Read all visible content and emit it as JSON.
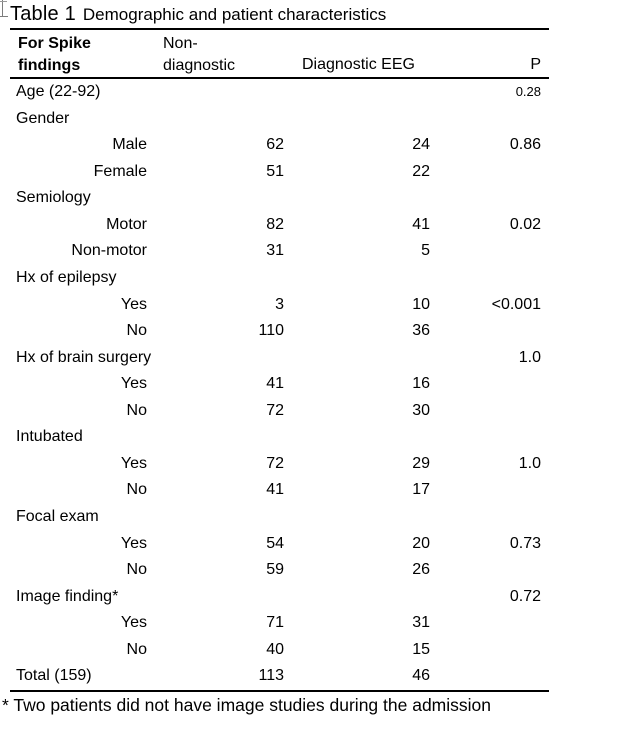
{
  "title": {
    "label": "Table 1",
    "caption": "Demographic and patient characteristics"
  },
  "header": {
    "col1_line1": "For Spike",
    "col1_line2": "findings",
    "col2_line1": "Non-",
    "col2_line2": "diagnostic",
    "col3": "Diagnostic EEG",
    "col4": "P"
  },
  "rows": [
    {
      "label": "Age (22-92)",
      "indent": false,
      "nd": "",
      "eeg": "",
      "p": "0.28",
      "p_small": true
    },
    {
      "label": "Gender",
      "indent": false,
      "nd": "",
      "eeg": "",
      "p": ""
    },
    {
      "label": "Male",
      "indent": true,
      "nd": "62",
      "eeg": "24",
      "p": "0.86"
    },
    {
      "label": "Female",
      "indent": true,
      "nd": "51",
      "eeg": "22",
      "p": ""
    },
    {
      "label": "Semiology",
      "indent": false,
      "nd": "",
      "eeg": "",
      "p": ""
    },
    {
      "label": "Motor",
      "indent": true,
      "nd": "82",
      "eeg": "41",
      "p": "0.02"
    },
    {
      "label": "Non-motor",
      "indent": true,
      "nd": "31",
      "eeg": "5",
      "p": ""
    },
    {
      "label": "Hx of epilepsy",
      "indent": false,
      "nd": "",
      "eeg": "",
      "p": ""
    },
    {
      "label": "Yes",
      "indent": true,
      "nd": "3",
      "eeg": "10",
      "p": "<0.001"
    },
    {
      "label": "No",
      "indent": true,
      "nd": "110",
      "eeg": "36",
      "p": ""
    },
    {
      "label": "Hx of brain surgery",
      "indent": false,
      "nd": "",
      "eeg": "",
      "p": "1.0"
    },
    {
      "label": "Yes",
      "indent": true,
      "nd": "41",
      "eeg": "16",
      "p": ""
    },
    {
      "label": "No",
      "indent": true,
      "nd": "72",
      "eeg": "30",
      "p": ""
    },
    {
      "label": "Intubated",
      "indent": false,
      "nd": "",
      "eeg": "",
      "p": ""
    },
    {
      "label": "Yes",
      "indent": true,
      "nd": "72",
      "eeg": "29",
      "p": "1.0"
    },
    {
      "label": "No",
      "indent": true,
      "nd": "41",
      "eeg": "17",
      "p": ""
    },
    {
      "label": "Focal exam",
      "indent": false,
      "nd": "",
      "eeg": "",
      "p": ""
    },
    {
      "label": "Yes",
      "indent": true,
      "nd": "54",
      "eeg": "20",
      "p": "0.73"
    },
    {
      "label": "No",
      "indent": true,
      "nd": "59",
      "eeg": "26",
      "p": ""
    },
    {
      "label": "Image finding*",
      "indent": false,
      "nd": "",
      "eeg": "",
      "p": "0.72"
    },
    {
      "label": "Yes",
      "indent": true,
      "nd": "71",
      "eeg": "31",
      "p": ""
    },
    {
      "label": "No",
      "indent": true,
      "nd": "40",
      "eeg": "15",
      "p": ""
    },
    {
      "label": "Total (159)",
      "indent": false,
      "nd": "113",
      "eeg": "46",
      "p": ""
    }
  ],
  "footnote": "* Two patients did not have image studies during the admission"
}
